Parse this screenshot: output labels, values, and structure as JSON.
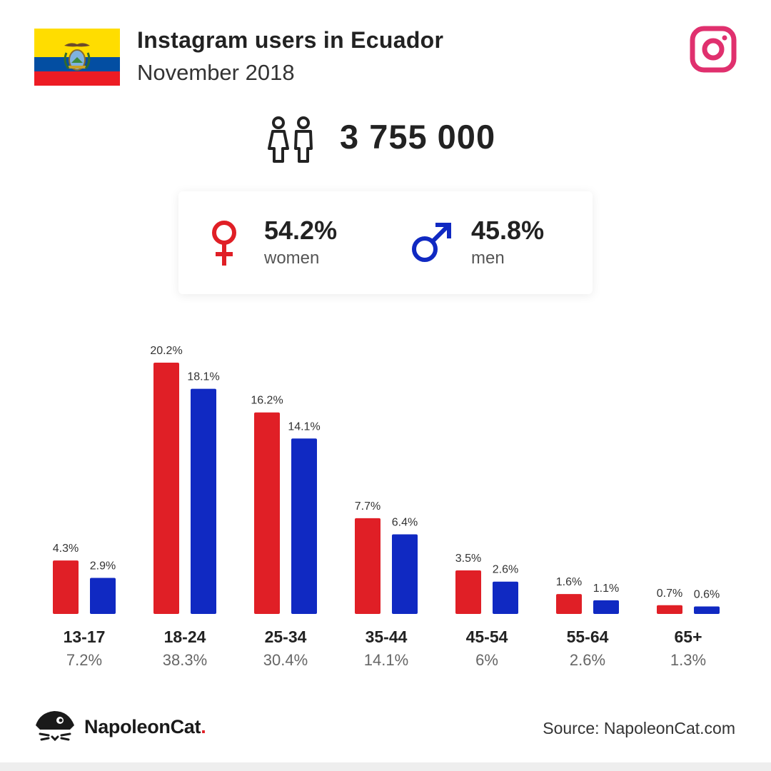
{
  "header": {
    "title": "Instagram users in Ecuador",
    "subtitle": "November 2018"
  },
  "colors": {
    "women": "#e01f26",
    "men": "#1029c2",
    "instagram": "#e0306e",
    "flag_yellow": "#ffdd00",
    "flag_blue": "#034ea2",
    "flag_red": "#ed1c24"
  },
  "icons": {
    "flag": "ecuador-flag-icon",
    "social": "instagram-icon",
    "users": "people-icon",
    "women": "female-symbol-icon",
    "men": "male-symbol-icon",
    "brand": "napoleoncat-logo-icon"
  },
  "total_users": "3 755 000",
  "gender": {
    "women_pct": "54.2%",
    "women_label": "women",
    "men_pct": "45.8%",
    "men_label": "men"
  },
  "chart_data": {
    "type": "bar",
    "title": "",
    "categories": [
      "13-17",
      "18-24",
      "25-34",
      "35-44",
      "45-54",
      "55-64",
      "65+"
    ],
    "category_totals": [
      "7.2%",
      "38.3%",
      "30.4%",
      "14.1%",
      "6%",
      "2.6%",
      "1.3%"
    ],
    "series": [
      {
        "values": [
          4.3,
          20.2,
          16.2,
          7.7,
          3.5,
          1.6,
          0.7
        ],
        "labels": [
          "4.3%",
          "20.2%",
          "16.2%",
          "7.7%",
          "3.5%",
          "1.6%",
          "0.7%"
        ]
      },
      {
        "values": [
          2.9,
          18.1,
          14.1,
          6.4,
          2.6,
          1.1,
          0.6
        ],
        "labels": [
          "2.9%",
          "18.1%",
          "14.1%",
          "6.4%",
          "2.6%",
          "1.1%",
          "0.6%"
        ]
      }
    ],
    "ylim": [
      0,
      20.2
    ],
    "grid": false,
    "legend": "none"
  },
  "footer": {
    "brand_name": "NapoleonCat",
    "brand_dot": ".",
    "source": "Source: NapoleonCat.com"
  }
}
